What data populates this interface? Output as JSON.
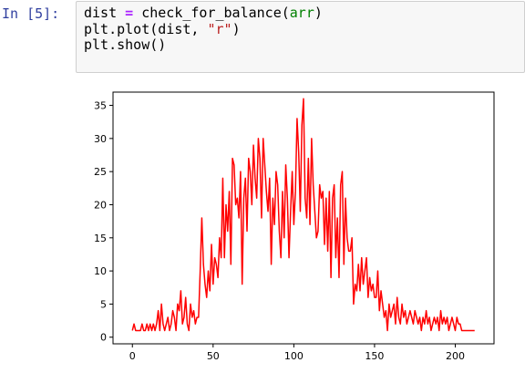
{
  "cell": {
    "prompt": "In [5]:",
    "code": {
      "line1": {
        "var": "dist",
        "op": "=",
        "call": "check_for_balance(",
        "builtin": "arr",
        "close": ")"
      },
      "line2": {
        "pre": "plt.plot(dist, ",
        "str": "\"r\"",
        "post": ")"
      },
      "line3": {
        "text": "plt.show()"
      }
    }
  },
  "chart_data": {
    "type": "line",
    "color": "#ff0000",
    "xlim": [
      -12,
      224
    ],
    "ylim": [
      -1,
      37
    ],
    "xticks": [
      0,
      50,
      100,
      150,
      200
    ],
    "yticks": [
      0,
      5,
      10,
      15,
      20,
      25,
      30,
      35
    ],
    "series": [
      {
        "values": [
          1,
          2,
          1,
          1,
          1,
          1,
          2,
          1,
          1,
          2,
          1,
          2,
          1,
          2,
          1,
          2,
          4,
          1,
          5,
          2,
          1,
          2,
          3,
          1,
          2,
          4,
          3,
          1,
          5,
          4,
          7,
          2,
          3,
          6,
          2,
          1,
          5,
          3,
          4,
          2,
          3,
          3,
          10,
          18,
          11,
          8,
          6,
          10,
          7,
          14,
          8,
          12,
          11,
          9,
          15,
          12,
          24,
          12,
          20,
          16,
          22,
          11,
          27,
          26,
          20,
          21,
          18,
          25,
          8,
          21,
          24,
          16,
          27,
          25,
          20,
          29,
          24,
          21,
          30,
          27,
          18,
          30,
          26,
          22,
          19,
          24,
          11,
          21,
          17,
          25,
          23,
          16,
          12,
          22,
          15,
          26,
          21,
          12,
          19,
          25,
          17,
          22,
          33,
          28,
          19,
          32,
          36,
          21,
          18,
          27,
          17,
          30,
          23,
          19,
          15,
          16,
          23,
          21,
          22,
          14,
          21,
          13,
          22,
          9,
          21,
          23,
          12,
          18,
          9,
          23,
          25,
          11,
          21,
          15,
          13,
          13,
          15,
          5,
          8,
          7,
          11,
          7,
          12,
          8,
          10,
          12,
          6,
          9,
          7,
          8,
          6,
          6,
          10,
          4,
          7,
          5,
          3,
          4,
          1,
          5,
          3,
          4,
          5,
          2,
          6,
          3,
          2,
          5,
          3,
          4,
          2,
          3,
          4,
          3,
          2,
          4,
          3,
          2,
          3,
          1,
          3,
          2,
          4,
          2,
          3,
          1,
          2,
          3,
          2,
          3,
          1,
          4,
          2,
          3,
          2,
          3,
          1,
          2,
          3,
          2,
          1,
          3,
          2,
          2,
          1,
          1,
          1,
          1,
          1,
          1,
          1,
          1,
          1
        ]
      }
    ]
  }
}
